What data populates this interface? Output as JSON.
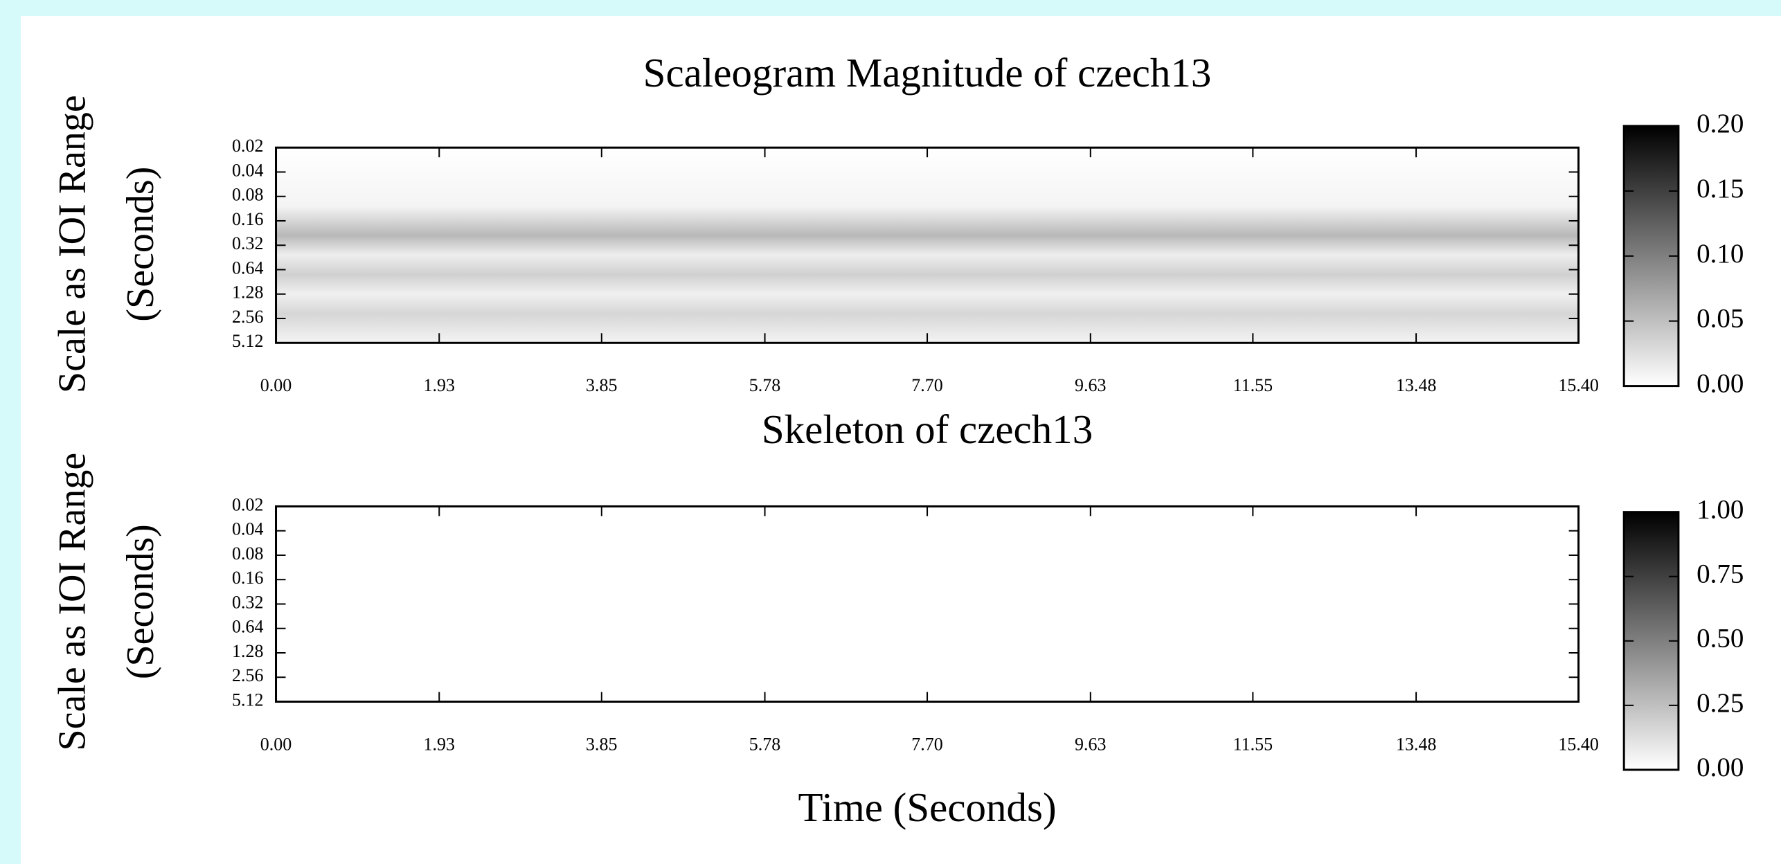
{
  "chart_data": [
    {
      "type": "heatmap",
      "title": "Scaleogram Magnitude of czech13",
      "ylabel": [
        "Scale as IOI Range",
        "(Seconds)"
      ],
      "xlim": [
        0,
        15.4
      ],
      "xticks": [
        {
          "value": 0,
          "label": "0.00"
        },
        1.93,
        3.85,
        5.78,
        {
          "value": 7.7,
          "label": "7.70"
        },
        9.63,
        11.55,
        13.48,
        {
          "value": 15.4,
          "label": "15.40"
        }
      ],
      "ylim": [
        0.02,
        5.12
      ],
      "log_y": true,
      "yticks": [
        0.02,
        0.04,
        0.08,
        0.16,
        0.32,
        0.64,
        1.28,
        2.56,
        5.12
      ],
      "colormap": [
        "#ffffff",
        "#000000"
      ],
      "zlim": [
        0,
        0.2
      ],
      "zticks": [
        {
          "value": 0,
          "label": "0.00"
        },
        0.05,
        {
          "value": 0.1,
          "label": "0.10"
        },
        0.15,
        {
          "value": 0.2,
          "label": "0.20"
        }
      ]
    },
    {
      "type": "heatmap",
      "title": "Skeleton of czech13",
      "ylabel": [
        "Scale as IOI Range",
        "(Seconds)"
      ],
      "xlabel": "Time (Seconds)",
      "xlim": [
        0,
        15.4
      ],
      "xticks": [
        {
          "value": 0,
          "label": "0.00"
        },
        1.93,
        3.85,
        5.78,
        {
          "value": 7.7,
          "label": "7.70"
        },
        9.63,
        11.55,
        13.48,
        {
          "value": 15.4,
          "label": "15.40"
        }
      ],
      "ylim": [
        0.02,
        5.12
      ],
      "log_y": true,
      "yticks": [
        0.02,
        0.04,
        0.08,
        0.16,
        0.32,
        0.64,
        1.28,
        2.56,
        5.12
      ],
      "colormap": [
        "#ffffff",
        "#000000"
      ],
      "zlim": [
        0,
        1
      ],
      "zticks": [
        {
          "value": 0,
          "label": "0.00"
        },
        0.25,
        {
          "value": 0.5,
          "label": "0.50"
        },
        0.75,
        {
          "value": 1,
          "label": "1.00"
        }
      ]
    }
  ]
}
